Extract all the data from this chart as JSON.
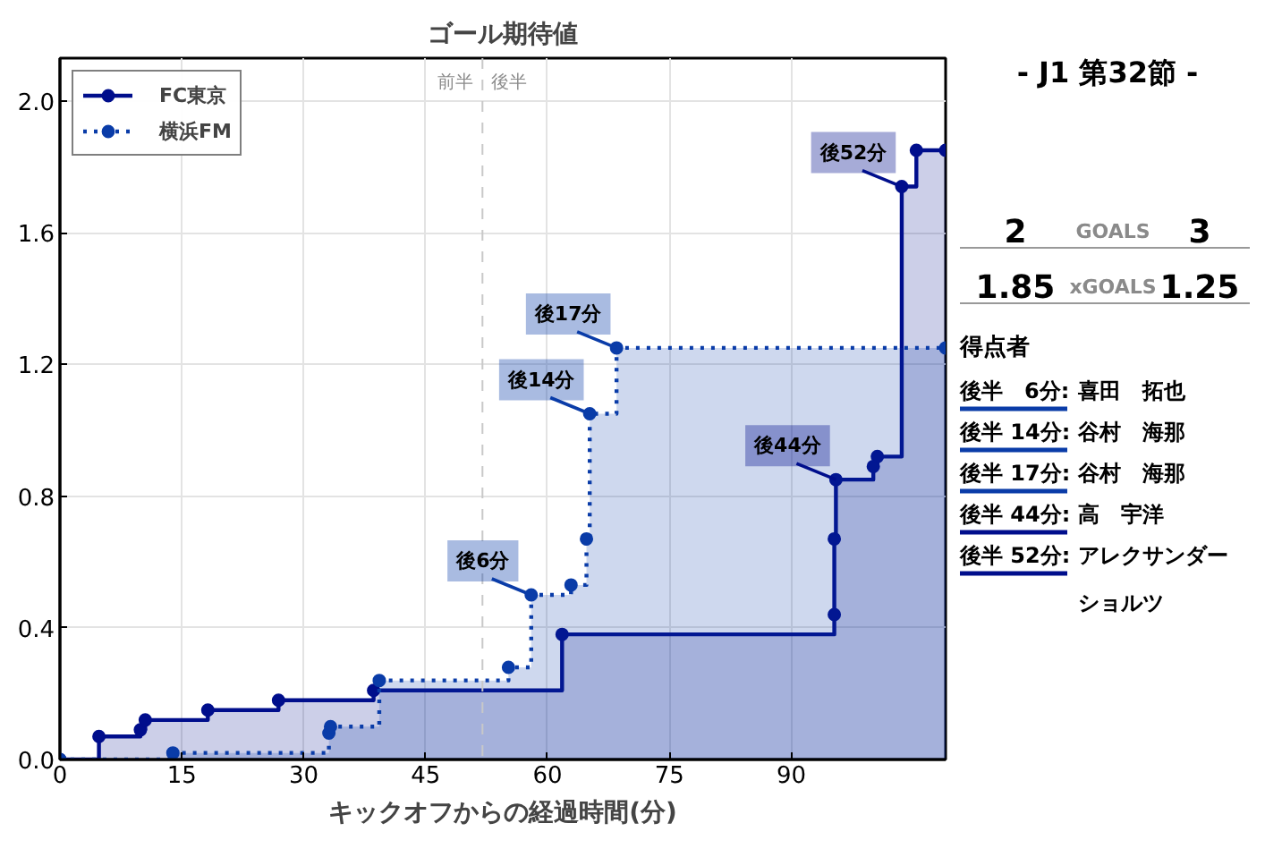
{
  "chart_data": [
    {
      "type": "step",
      "title": "ゴール期待値",
      "xlabel": "キックオフからの経過時間(分)",
      "series": [
        {
          "name": "FC東京",
          "color": "#000e8c",
          "line_style": "solid",
          "x": [
            0,
            4.8,
            9.9,
            10.5,
            18.2,
            26.9,
            38.6,
            61.8,
            95.3,
            95.3,
            95.5,
            100.1,
            100.6,
            103.6,
            105.4,
            109
          ],
          "values": [
            0,
            0.07,
            0.09,
            0.12,
            0.15,
            0.18,
            0.21,
            0.38,
            0.44,
            0.67,
            0.85,
            0.89,
            0.92,
            1.74,
            1.85,
            1.85
          ]
        },
        {
          "name": "横浜FM",
          "color": "#0a3ca8",
          "line_style": "dotted",
          "x": [
            0,
            13.9,
            33.1,
            33.3,
            39.3,
            55.2,
            58.0,
            62.9,
            64.8,
            65.2,
            68.5,
            109
          ],
          "values": [
            0,
            0.02,
            0.08,
            0.1,
            0.24,
            0.28,
            0.5,
            0.53,
            0.67,
            1.05,
            1.25,
            1.25
          ]
        }
      ],
      "xlim": [
        0,
        109
      ],
      "xticks": [
        0,
        15,
        30,
        45,
        60,
        75,
        90
      ],
      "ylim": [
        0,
        2.13
      ],
      "yticks": [
        {
          "value": 0,
          "label": "0.0"
        },
        0.4,
        0.8,
        1.2,
        1.6,
        {
          "value": 2,
          "label": "2.0"
        }
      ],
      "grid": true,
      "legend": "top left",
      "marker": "circle",
      "ref_lines": [
        {
          "axis": "x",
          "value": 52,
          "label": "前半　後半",
          "color": "#c8c8c8",
          "line_style": "dashed"
        }
      ],
      "annotations": [
        {
          "text": "後6分",
          "x": 58.0,
          "y": 0.5
        },
        {
          "text": "後14分",
          "x": 65.2,
          "y": 1.05
        },
        {
          "text": "後17分",
          "x": 68.5,
          "y": 1.25
        },
        {
          "text": "後44分",
          "x": 95.5,
          "y": 0.85
        },
        {
          "text": "後52分",
          "x": 103.6,
          "y": 1.74
        }
      ]
    },
    {
      "type": "other",
      "title": "- J1 第32節 -",
      "categories": [
        "GOALS",
        "xGOALS"
      ],
      "series": [
        {
          "color": "#000000",
          "values": [
            2,
            1.85
          ]
        },
        {
          "color": "#000000",
          "values": [
            3,
            1.25
          ]
        }
      ],
      "data_labels": true,
      "annotations": [
        "得点者",
        "後半　6分:",
        "喜田　拓也",
        "後半 14分:",
        "谷村　海那",
        "後半 17分:",
        "谷村　海那",
        "後半 44分:",
        "高　宇洋",
        "後半 52分:",
        "アレクサンダーショルツ"
      ],
      "colors": [
        "#0a3ca8",
        "#0a3ca8",
        "#0a3ca8",
        "#000e8c",
        "#000e8c"
      ]
    }
  ]
}
